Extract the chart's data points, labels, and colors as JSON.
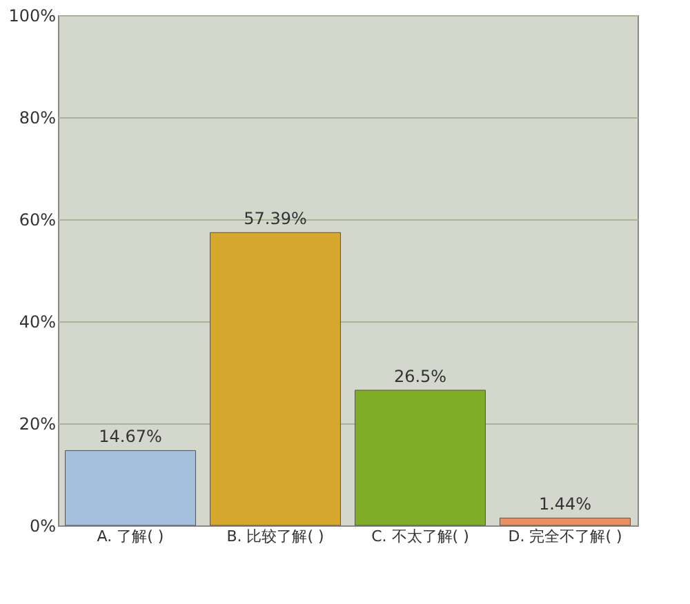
{
  "chart_data": {
    "type": "bar",
    "categories": [
      "A. 了解( )",
      "B. 比较了解( )",
      "C. 不太了解( )",
      "D. 完全不了解( )"
    ],
    "values": [
      14.67,
      57.39,
      26.5,
      1.44
    ],
    "colors": [
      "#a4bedc",
      "#d7a62c",
      "#7fae26",
      "#ec9064"
    ],
    "value_labels": [
      "14.67%",
      "57.39%",
      "26.5%",
      "1.44%"
    ],
    "ylim": [
      0,
      100
    ],
    "yticks": [
      {
        "value": 0,
        "label": "0%"
      },
      {
        "value": 20,
        "label": "20%"
      },
      {
        "value": 40,
        "label": "40%"
      },
      {
        "value": 60,
        "label": "60%"
      },
      {
        "value": 80,
        "label": "80%"
      },
      {
        "value": 100,
        "label": "100%"
      }
    ],
    "grid": "y"
  }
}
